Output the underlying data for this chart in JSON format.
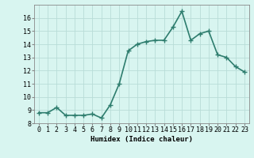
{
  "x": [
    0,
    1,
    2,
    3,
    4,
    5,
    6,
    7,
    8,
    9,
    10,
    11,
    12,
    13,
    14,
    15,
    16,
    17,
    18,
    19,
    20,
    21,
    22,
    23
  ],
  "y": [
    8.8,
    8.8,
    9.2,
    8.6,
    8.6,
    8.6,
    8.7,
    8.4,
    9.4,
    11.0,
    13.5,
    14.0,
    14.2,
    14.3,
    14.3,
    15.3,
    16.5,
    14.3,
    14.8,
    15.0,
    13.2,
    13.0,
    12.3,
    11.9
  ],
  "line_color": "#2e7d6e",
  "marker": "+",
  "marker_size": 4,
  "bg_color": "#d8f5f0",
  "grid_color": "#b8ddd8",
  "xlabel": "Humidex (Indice chaleur)",
  "ylim": [
    8,
    17
  ],
  "xlim": [
    -0.5,
    23.5
  ],
  "yticks": [
    8,
    9,
    10,
    11,
    12,
    13,
    14,
    15,
    16
  ],
  "xticks": [
    0,
    1,
    2,
    3,
    4,
    5,
    6,
    7,
    8,
    9,
    10,
    11,
    12,
    13,
    14,
    15,
    16,
    17,
    18,
    19,
    20,
    21,
    22,
    23
  ],
  "xtick_labels": [
    "0",
    "1",
    "2",
    "3",
    "4",
    "5",
    "6",
    "7",
    "8",
    "9",
    "10",
    "11",
    "12",
    "13",
    "14",
    "15",
    "16",
    "17",
    "18",
    "19",
    "20",
    "21",
    "22",
    "23"
  ],
  "axis_fontsize": 6.5,
  "tick_fontsize": 6.0,
  "linewidth": 1.2,
  "marker_ew": 1.0
}
